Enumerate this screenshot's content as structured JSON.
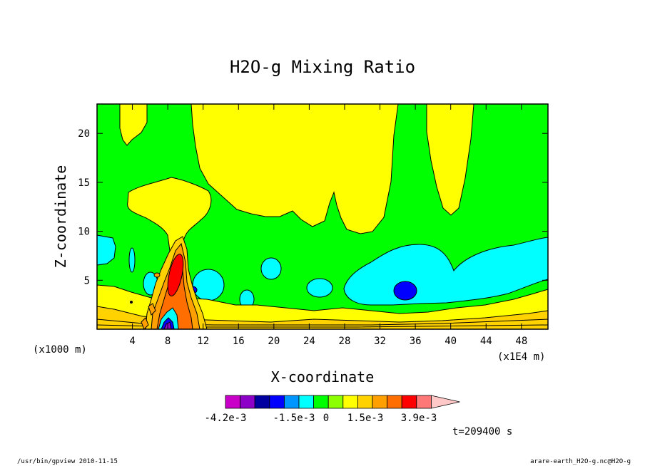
{
  "chart_data": {
    "type": "heatmap",
    "title": "H2O-g Mixing Ratio",
    "xlabel": "X-coordinate",
    "ylabel": "Z-coordinate",
    "x_units_left": "(x1000 m)",
    "x_units_right": "(x1E4 m)",
    "xlim": [
      0,
      51
    ],
    "ylim": [
      0,
      23
    ],
    "x_ticks": [
      4,
      8,
      12,
      16,
      20,
      24,
      28,
      32,
      36,
      40,
      44,
      48
    ],
    "y_ticks": [
      5,
      10,
      15,
      20
    ],
    "time_label": "t=209400 s",
    "colorbar": {
      "labels": [
        "-4.2e-3",
        "-1.5e-3",
        "0",
        "1.5e-3",
        "3.9e-3"
      ],
      "colors": [
        "#c800c8",
        "#8c00c8",
        "#0000a0",
        "#0000ff",
        "#0096ff",
        "#00ffff",
        "#00ff00",
        "#8cff00",
        "#ffff00",
        "#ffd200",
        "#ffa000",
        "#ff6e00",
        "#ff0000",
        "#ff7878",
        "#ffc8c8"
      ]
    }
  },
  "footer": {
    "left": "/usr/bin/gpview  2010-11-15",
    "right": "arare-earth_H2O-g.nc@H2O-g"
  },
  "colors": {
    "background_field": "#00ff00",
    "upper_band": "#ffff00",
    "moist_region": "#00ffff",
    "core": "#0000ff",
    "surface_layer": "#ffd200",
    "plume": "#ff0000"
  }
}
